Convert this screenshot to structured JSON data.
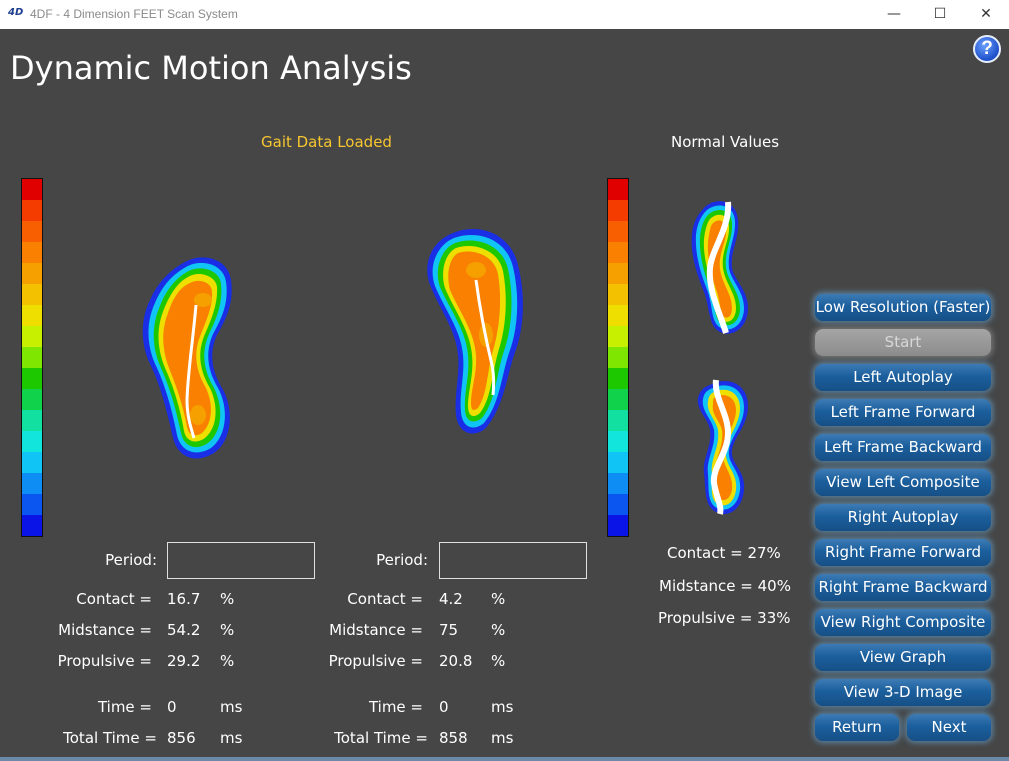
{
  "window": {
    "title": "4DF - 4 Dimension FEET Scan System",
    "minimize": "—",
    "maximize": "☐",
    "close": "✕"
  },
  "header": {
    "title": "Dynamic Motion Analysis",
    "help": "?"
  },
  "status": "Gait Data Loaded",
  "normal": {
    "title": "Normal Values",
    "contact": "Contact = 27%",
    "midstance": "Midstance = 40%",
    "propulsive": "Propulsive = 33%"
  },
  "colors": {
    "scale": [
      "#e00000",
      "#f53c00",
      "#f85f00",
      "#f98000",
      "#f6a000",
      "#f4c100",
      "#eedf00",
      "#c6f000",
      "#7ee600",
      "#1ec800",
      "#11d24b",
      "#12e0a0",
      "#12e6dc",
      "#10c4f5",
      "#0e8df5",
      "#0b55f0",
      "#0a14e6"
    ]
  },
  "left": {
    "period_label": "Period:",
    "period_value": "",
    "contact_label": "Contact =",
    "contact_value": "16.7",
    "contact_unit": "%",
    "midstance_label": "Midstance =",
    "midstance_value": "54.2",
    "midstance_unit": "%",
    "propulsive_label": "Propulsive =",
    "propulsive_value": "29.2",
    "propulsive_unit": "%",
    "time_label": "Time =",
    "time_value": "0",
    "time_unit": "ms",
    "total_label": "Total Time =",
    "total_value": "856",
    "total_unit": "ms"
  },
  "right": {
    "period_label": "Period:",
    "period_value": "",
    "contact_label": "Contact =",
    "contact_value": "4.2",
    "contact_unit": "%",
    "midstance_label": "Midstance =",
    "midstance_value": "75",
    "midstance_unit": "%",
    "propulsive_label": "Propulsive =",
    "propulsive_value": "20.8",
    "propulsive_unit": "%",
    "time_label": "Time =",
    "time_value": "0",
    "time_unit": "ms",
    "total_label": "Total Time =",
    "total_value": "858",
    "total_unit": "ms"
  },
  "buttons": {
    "low_res": "Low Resolution (Faster)",
    "start": "Start",
    "left_autoplay": "Left Autoplay",
    "left_forward": "Left Frame Forward",
    "left_backward": "Left Frame Backward",
    "left_composite": "View Left Composite",
    "right_autoplay": "Right Autoplay",
    "right_forward": "Right Frame Forward",
    "right_backward": "Right Frame Backward",
    "right_composite": "View Right Composite",
    "graph": "View Graph",
    "image3d": "View 3-D Image",
    "return": "Return",
    "next": "Next"
  }
}
